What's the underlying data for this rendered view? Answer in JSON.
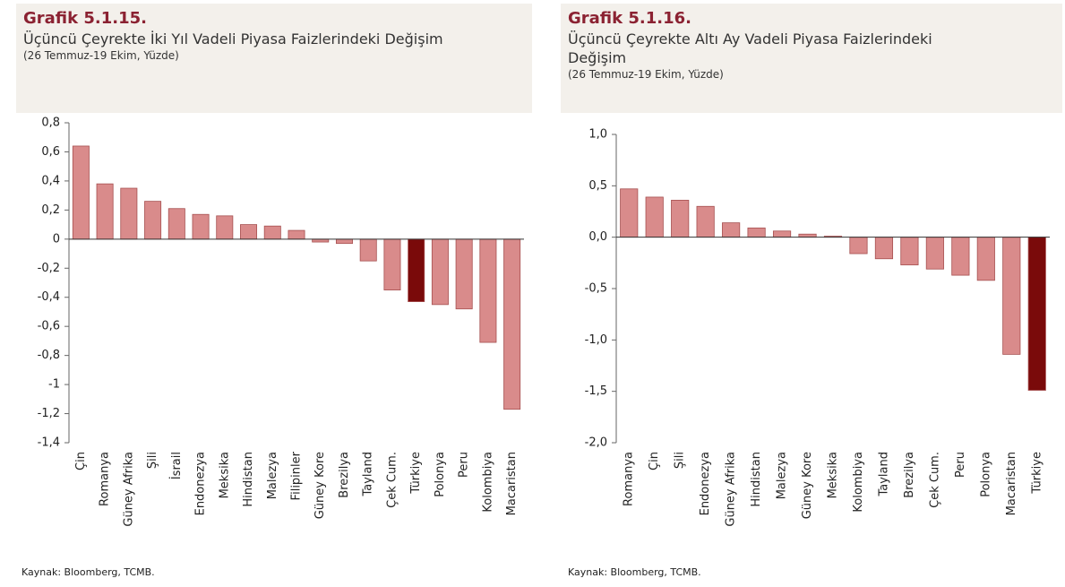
{
  "chart_data": [
    {
      "type": "bar",
      "title": "Grafik 5.1.15.",
      "subtitle": "Üçüncü Çeyrekte İki Yıl Vadeli Piyasa Faizlerindeki Değişim",
      "note": "(26 Temmuz-19 Ekim, Yüzde)",
      "source": "Kaynak: Bloomberg, TCMB.",
      "categories": [
        "Çin",
        "Romanya",
        "Güney Afrika",
        "Şili",
        "İsrail",
        "Endonezya",
        "Meksika",
        "Hindistan",
        "Malezya",
        "Filipinler",
        "Güney Kore",
        "Brezilya",
        "Tayland",
        "Çek Cum.",
        "Türkiye",
        "Polonya",
        "Peru",
        "Kolombiya",
        "Macaristan"
      ],
      "values": [
        0.64,
        0.38,
        0.35,
        0.26,
        0.21,
        0.17,
        0.16,
        0.1,
        0.09,
        0.06,
        -0.02,
        -0.03,
        -0.15,
        -0.35,
        -0.43,
        -0.45,
        -0.48,
        -0.71,
        -1.17
      ],
      "colors": [
        "#d98b8b",
        "#d98b8b",
        "#d98b8b",
        "#d98b8b",
        "#d98b8b",
        "#d98b8b",
        "#d98b8b",
        "#d98b8b",
        "#d98b8b",
        "#d98b8b",
        "#d98b8b",
        "#d98b8b",
        "#d98b8b",
        "#d98b8b",
        "#7a0a0a",
        "#d98b8b",
        "#d98b8b",
        "#d98b8b",
        "#d98b8b"
      ],
      "ylim": [
        -1.4,
        0.8
      ],
      "yticks": [
        {
          "value": 0.8,
          "label": "0,8"
        },
        {
          "value": 0.6,
          "label": "0,6"
        },
        {
          "value": 0.4,
          "label": "0,4"
        },
        {
          "value": 0.2,
          "label": "0,2"
        },
        0,
        {
          "value": -0.2,
          "label": "-0,2"
        },
        {
          "value": -0.4,
          "label": "-0,4"
        },
        {
          "value": -0.6,
          "label": "-0,6"
        },
        {
          "value": -0.8,
          "label": "-0,8"
        },
        -1,
        {
          "value": -1.2,
          "label": "-1,2"
        },
        {
          "value": -1.4,
          "label": "-1,4"
        }
      ]
    },
    {
      "type": "bar",
      "title": "Grafik 5.1.16.",
      "subtitle": "Üçüncü Çeyrekte Altı Ay Vadeli Piyasa Faizlerindeki Değişim",
      "note": "(26 Temmuz-19 Ekim, Yüzde)",
      "source": "Kaynak: Bloomberg, TCMB.",
      "categories": [
        "Romanya",
        "Çin",
        "Şili",
        "Endonezya",
        "Güney Afrika",
        "Hindistan",
        "Malezya",
        "Güney Kore",
        "Meksika",
        "Kolombiya",
        "Tayland",
        "Brezilya",
        "Çek Cum.",
        "Peru",
        "Polonya",
        "Macaristan",
        "Türkiye"
      ],
      "values": [
        0.47,
        0.39,
        0.36,
        0.3,
        0.14,
        0.09,
        0.06,
        0.03,
        0.01,
        -0.16,
        -0.21,
        -0.27,
        -0.31,
        -0.37,
        -0.42,
        -1.14,
        -1.49
      ],
      "colors": [
        "#d98b8b",
        "#d98b8b",
        "#d98b8b",
        "#d98b8b",
        "#d98b8b",
        "#d98b8b",
        "#d98b8b",
        "#d98b8b",
        "#d98b8b",
        "#d98b8b",
        "#d98b8b",
        "#d98b8b",
        "#d98b8b",
        "#d98b8b",
        "#d98b8b",
        "#d98b8b",
        "#7a0a0a"
      ],
      "ylim": [
        -2.0,
        1.0
      ],
      "yticks": [
        {
          "value": 1.0,
          "label": "1,0"
        },
        {
          "value": 0.5,
          "label": "0,5"
        },
        {
          "value": 0.0,
          "label": "0,0"
        },
        {
          "value": -0.5,
          "label": "-0,5"
        },
        {
          "value": -1.0,
          "label": "-1,0"
        },
        {
          "value": -1.5,
          "label": "-1,5"
        },
        {
          "value": -2.0,
          "label": "-2,0"
        }
      ]
    }
  ]
}
